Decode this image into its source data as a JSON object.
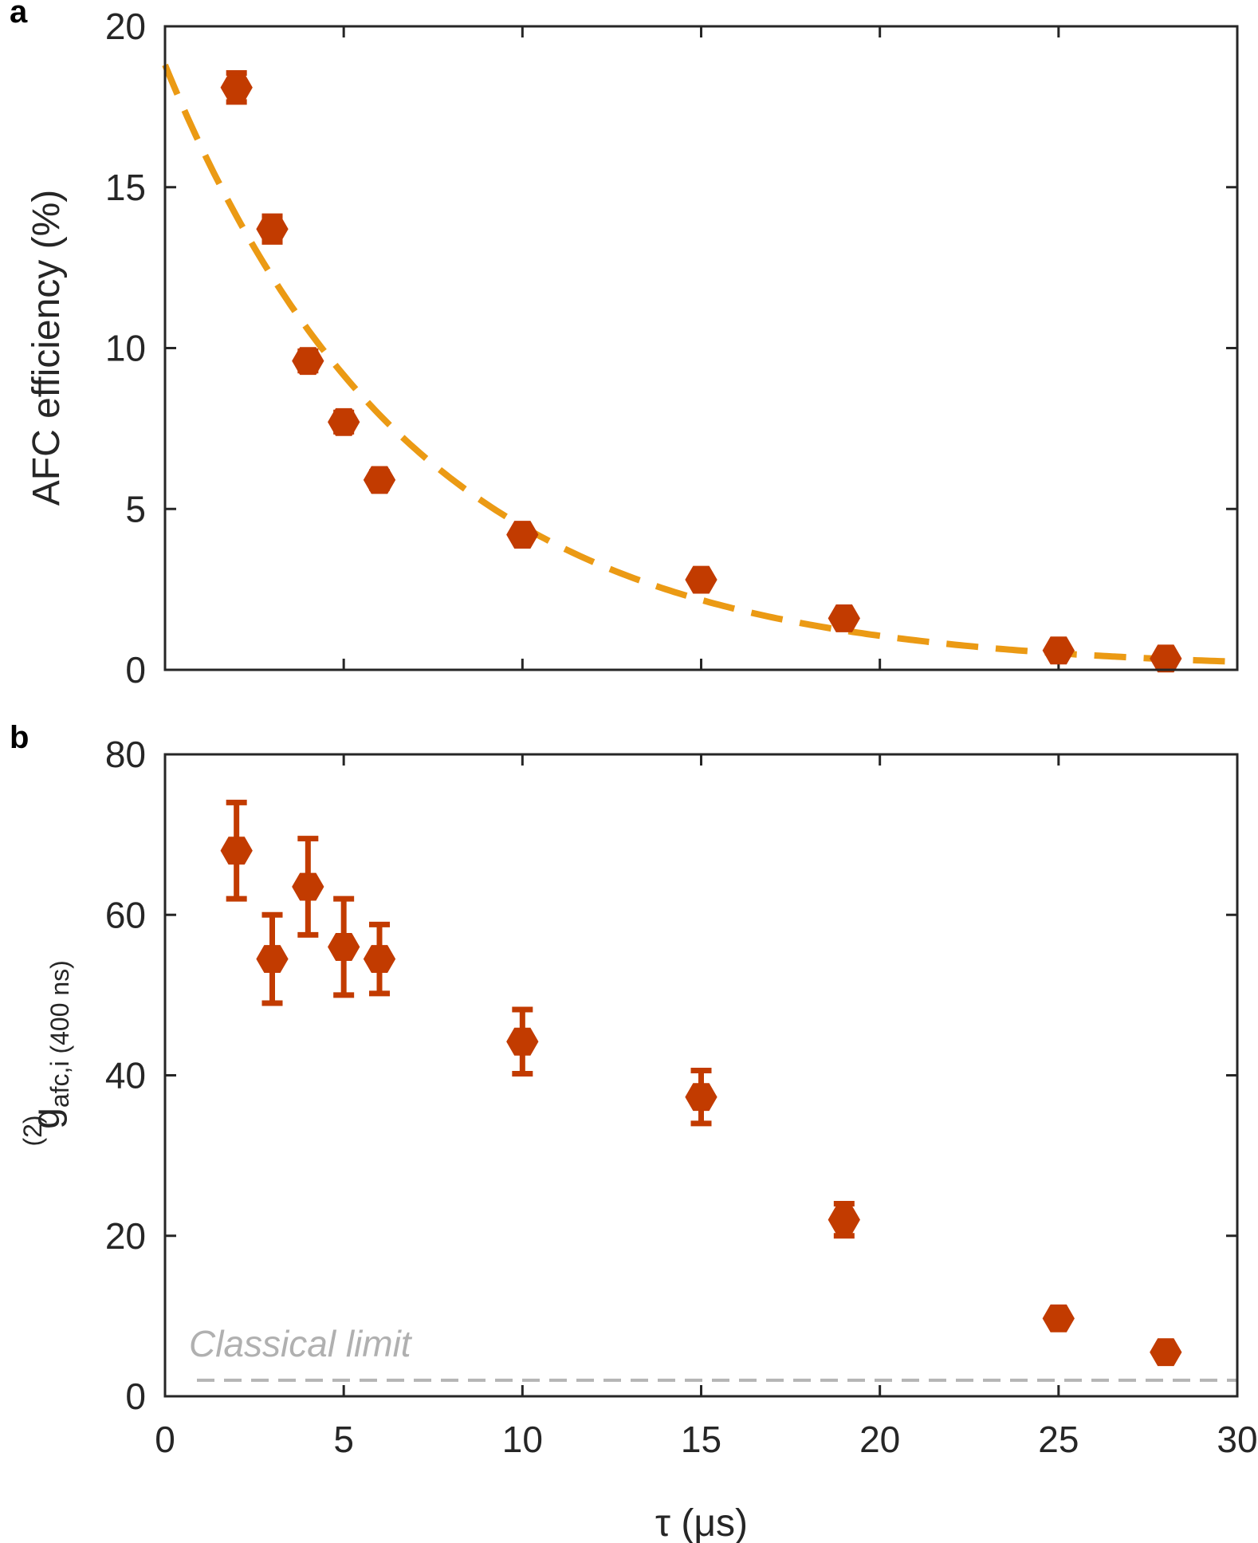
{
  "chart_data": [
    {
      "panel": "a",
      "type": "scatter",
      "xlabel": "",
      "ylabel": "AFC efficiency (%)",
      "xlim": [
        0,
        30
      ],
      "ylim": [
        0,
        20
      ],
      "xticks": [
        0,
        5,
        10,
        15,
        20,
        25,
        30
      ],
      "yticks": [
        0,
        5,
        10,
        15,
        20
      ],
      "series": [
        {
          "kind": "points",
          "color": "#c23b00",
          "x": [
            2,
            3,
            4,
            5,
            6,
            10,
            15,
            19,
            25,
            28
          ],
          "y": [
            18.1,
            13.7,
            9.6,
            7.7,
            5.9,
            4.2,
            2.8,
            1.6,
            0.6,
            0.35
          ],
          "err": [
            0.45,
            0.4,
            0.3,
            0.3,
            0.25,
            0.2,
            0.15,
            0.12,
            0.1,
            0.08
          ]
        },
        {
          "kind": "fit",
          "color": "#eb9a14",
          "dashed": true,
          "function": "exponential decay",
          "amplitude": 18.8,
          "decay_constant": 6.95
        }
      ]
    },
    {
      "panel": "b",
      "type": "scatter",
      "xlabel": "τ (μs)",
      "ylabel_main": "g",
      "ylabel_sup": "(2)",
      "ylabel_sub": "afc,i",
      "ylabel_extra": " (400 ns)",
      "xlim": [
        0,
        30
      ],
      "ylim": [
        0,
        80
      ],
      "xticks": [
        0,
        5,
        10,
        15,
        20,
        25,
        30
      ],
      "yticks": [
        0,
        20,
        40,
        60,
        80
      ],
      "series": [
        {
          "kind": "points",
          "color": "#c23b00",
          "x": [
            2,
            3,
            4,
            5,
            6,
            10,
            15,
            19,
            25,
            28
          ],
          "y": [
            68,
            54.5,
            63.5,
            56,
            54.5,
            44.2,
            37.3,
            22,
            9.7,
            5.5
          ],
          "err": [
            6,
            5.5,
            6,
            6,
            4.3,
            4,
            3.3,
            2,
            0.4,
            0.3
          ]
        },
        {
          "kind": "hline",
          "color": "#b5b5b5",
          "dashed": true,
          "y": 2,
          "label": "Classical limit"
        }
      ]
    }
  ]
}
